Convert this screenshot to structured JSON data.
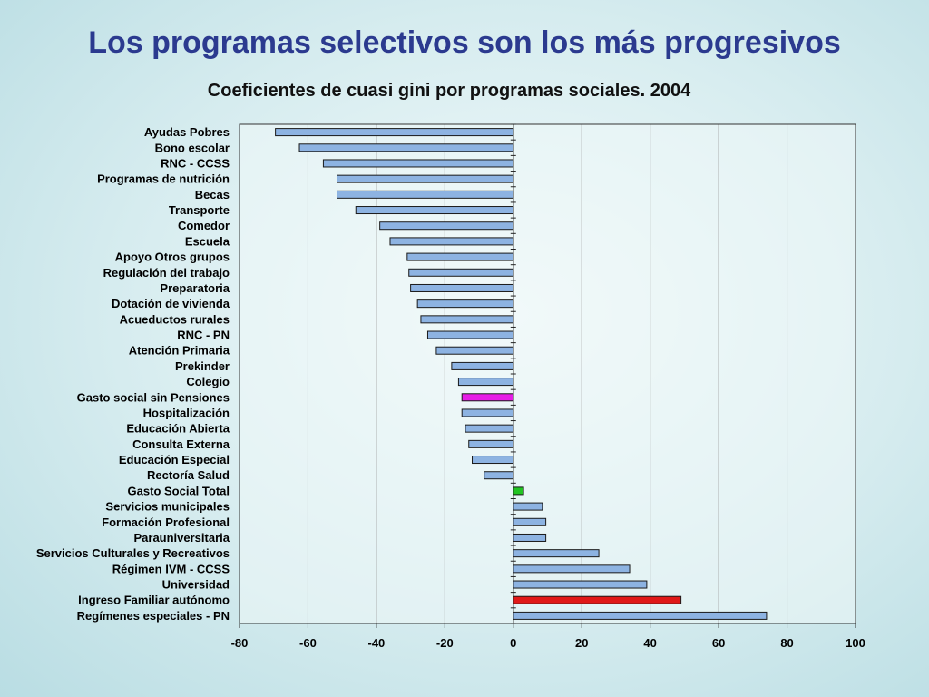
{
  "slide": {
    "title": "Los programas selectivos son los más progresivos"
  },
  "chart_data": {
    "type": "bar",
    "orientation": "horizontal",
    "title": "Coeficientes de cuasi gini por programas sociales. 2004",
    "xlabel": "",
    "ylabel": "",
    "xlim": [
      -80,
      100
    ],
    "xticks": [
      -80,
      -60,
      -40,
      -20,
      0,
      20,
      40,
      60,
      80,
      100
    ],
    "grid": "vertical",
    "categories": [
      "Ayudas Pobres",
      "Bono escolar",
      "RNC - CCSS",
      "Programas de nutrición",
      "Becas",
      "Transporte",
      "Comedor",
      "Escuela",
      "Apoyo Otros grupos",
      "Regulación del trabajo",
      "Preparatoria",
      "Dotación de vivienda",
      "Acueductos rurales",
      "RNC - PN",
      "Atención Primaria",
      "Prekinder",
      "Colegio",
      "Gasto social sin Pensiones",
      "Hospitalización",
      "Educación Abierta",
      "Consulta Externa",
      "Educación Especial",
      "Rectoría Salud",
      "Gasto Social Total",
      "Servicios municipales",
      "Formación Profesional",
      "Parauniversitaria",
      "Servicios Culturales y Recreativos",
      "Régimen IVM - CCSS",
      "Universidad",
      "Ingreso Familiar autónomo",
      "Regímenes especiales - PN"
    ],
    "values": [
      -69.5,
      -62.5,
      -55.5,
      -51.5,
      -51.5,
      -46,
      -39,
      -36,
      -31,
      -30.5,
      -30,
      -28,
      -27,
      -25,
      -22.5,
      -18,
      -16,
      -15,
      -15,
      -14,
      -13,
      -12,
      -8.5,
      3,
      8.5,
      9.5,
      9.5,
      25,
      34,
      39,
      49,
      74
    ],
    "colors": {
      "default": "#8db3e2",
      "highlight_magenta": "#e61ee6",
      "highlight_green": "#22c422",
      "highlight_red": "#e01818",
      "grid": "#9e9e9e"
    },
    "highlights": {
      "Gasto social sin Pensiones": "highlight_magenta",
      "Gasto Social Total": "highlight_green",
      "Ingreso Familiar autónomo": "highlight_red"
    }
  }
}
